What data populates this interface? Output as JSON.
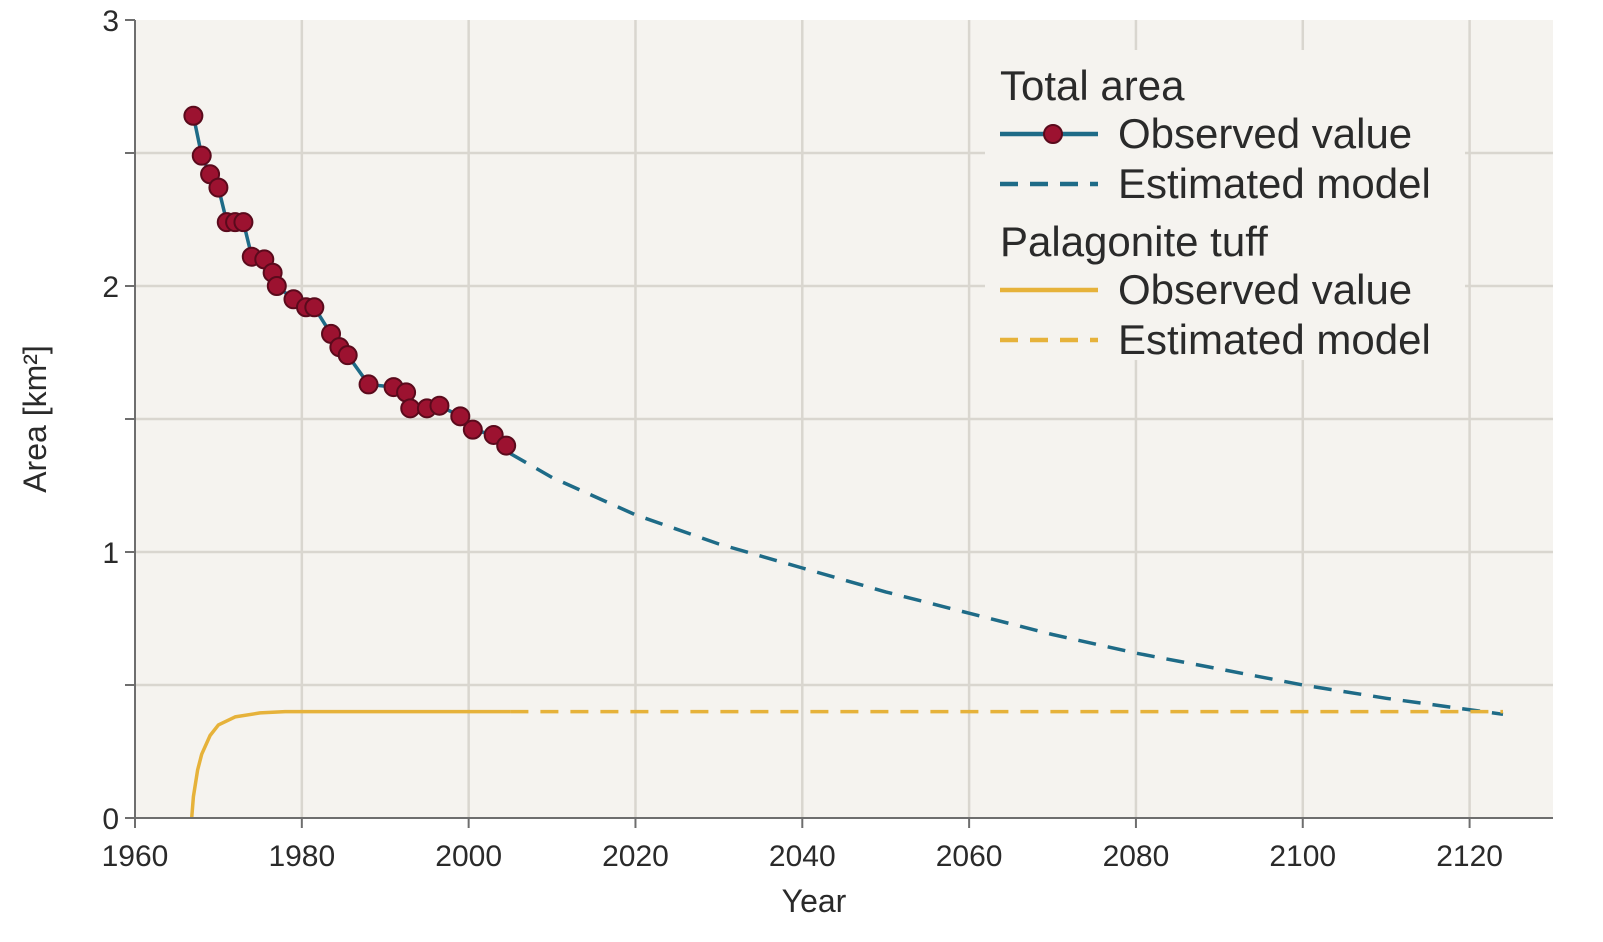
{
  "chart_data": {
    "type": "line",
    "xlabel": "Year",
    "ylabel": "Area [km²]",
    "xlim": [
      1960,
      2130
    ],
    "ylim": [
      0,
      3
    ],
    "x_ticks": [
      1960,
      1980,
      2000,
      2020,
      2040,
      2060,
      2080,
      2100,
      2120
    ],
    "y_ticks": [
      0,
      1,
      2,
      3
    ],
    "grid": true,
    "legend_position": "top-right",
    "colors": {
      "plot_background": "#f5f3ef",
      "grid": "#d9d6cf",
      "axis": "#6e6e6e",
      "total_area": "#1e6b87",
      "marker_fill": "#9c1230",
      "marker_edge": "#5a0a1c",
      "palagonite": "#e6b23a"
    },
    "legend": {
      "groups": [
        {
          "heading": "Total area",
          "entries": [
            {
              "label": "Observed value",
              "series": "total_observed"
            },
            {
              "label": "Estimated model",
              "series": "total_model"
            }
          ]
        },
        {
          "heading": "Palagonite tuff",
          "entries": [
            {
              "label": "Observed value",
              "series": "tuff_observed"
            },
            {
              "label": "Estimated model",
              "series": "tuff_model"
            }
          ]
        }
      ]
    },
    "series": [
      {
        "key": "total_observed",
        "style": "solid-with-markers",
        "color": "#1e6b87",
        "points": [
          [
            1967,
            2.64
          ],
          [
            1968,
            2.49
          ],
          [
            1969,
            2.42
          ],
          [
            1970,
            2.37
          ],
          [
            1971,
            2.24
          ],
          [
            1972,
            2.24
          ],
          [
            1973,
            2.24
          ],
          [
            1974,
            2.11
          ],
          [
            1975.5,
            2.1
          ],
          [
            1976.5,
            2.05
          ],
          [
            1977,
            2.0
          ],
          [
            1979,
            1.95
          ],
          [
            1980.5,
            1.92
          ],
          [
            1981.5,
            1.92
          ],
          [
            1983.5,
            1.82
          ],
          [
            1984.5,
            1.77
          ],
          [
            1985.5,
            1.74
          ],
          [
            1988,
            1.63
          ],
          [
            1991,
            1.62
          ],
          [
            1992.5,
            1.6
          ],
          [
            1993,
            1.54
          ],
          [
            1995,
            1.54
          ],
          [
            1996.5,
            1.55
          ],
          [
            1999,
            1.51
          ],
          [
            2000.5,
            1.46
          ],
          [
            2003,
            1.44
          ],
          [
            2004.5,
            1.4
          ]
        ]
      },
      {
        "key": "total_model",
        "style": "dashed",
        "color": "#1e6b87",
        "points": [
          [
            2005,
            1.37
          ],
          [
            2010,
            1.28
          ],
          [
            2020,
            1.14
          ],
          [
            2030,
            1.03
          ],
          [
            2040,
            0.94
          ],
          [
            2050,
            0.85
          ],
          [
            2060,
            0.77
          ],
          [
            2070,
            0.69
          ],
          [
            2080,
            0.62
          ],
          [
            2090,
            0.56
          ],
          [
            2100,
            0.5
          ],
          [
            2110,
            0.45
          ],
          [
            2124,
            0.39
          ]
        ]
      },
      {
        "key": "tuff_observed",
        "style": "solid",
        "color": "#e6b23a",
        "points": [
          [
            1966.8,
            0
          ],
          [
            1967,
            0.08
          ],
          [
            1967.5,
            0.18
          ],
          [
            1968,
            0.24
          ],
          [
            1969,
            0.31
          ],
          [
            1970,
            0.35
          ],
          [
            1972,
            0.38
          ],
          [
            1975,
            0.395
          ],
          [
            1978,
            0.4
          ],
          [
            1990,
            0.4
          ],
          [
            2005,
            0.4
          ]
        ]
      },
      {
        "key": "tuff_model",
        "style": "dashed",
        "color": "#e6b23a",
        "points": [
          [
            2005,
            0.4
          ],
          [
            2124,
            0.4
          ]
        ]
      }
    ]
  }
}
